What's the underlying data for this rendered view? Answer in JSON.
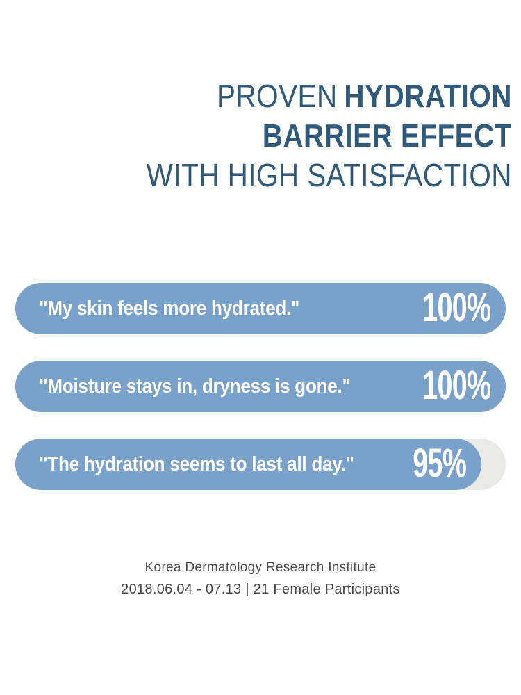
{
  "title": {
    "line1_regular": "PROVEN",
    "line1_bold": "HYDRATION",
    "line2_bold": "BARRIER EFFECT",
    "line3_regular": "WITH HIGH SATISFACTION"
  },
  "chart_data": {
    "type": "bar",
    "orientation": "horizontal",
    "title": "PROVEN HYDRATION BARRIER EFFECT WITH HIGH SATISFACTION",
    "categories": [
      "\"My skin feels more hydrated.\"",
      "\"Moisture stays in, dryness is gone.\"",
      "\"The hydration seems to last all day.\""
    ],
    "values": [
      100,
      100,
      95
    ],
    "value_labels": [
      "100%",
      "100%",
      "95%"
    ],
    "xlim": [
      0,
      100
    ],
    "grid": false,
    "legend": false,
    "bar_color": "#7aa1c9",
    "track_color": "#e9e9e7",
    "value_label_position": "inside-right"
  },
  "bars": [
    {
      "label": "\"My skin feels more hydrated.\"",
      "value": "100%",
      "percent": 100
    },
    {
      "label": "\"Moisture stays in, dryness is gone.\"",
      "value": "100%",
      "percent": 100
    },
    {
      "label": "\"The hydration seems to last all day.\"",
      "value": "95%",
      "percent": 95
    }
  ],
  "footer": {
    "line1": "Korea Dermatology Research Institute",
    "line2": "2018.06.04 - 07.13 | 21 Female Participants"
  },
  "colors": {
    "background": "#ffffff",
    "title_text": "#2f5a7c",
    "bar_fill": "#7aa1c9",
    "bar_track": "#e9e9e7",
    "bar_text": "#ffffff",
    "footer_text": "#4c4c4e"
  }
}
